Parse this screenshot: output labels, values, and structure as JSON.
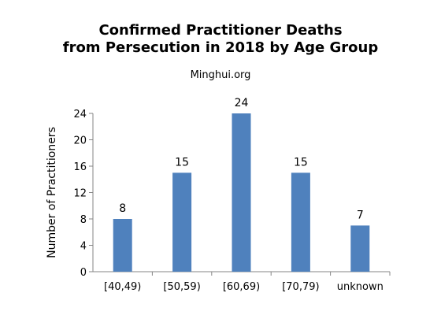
{
  "chart_data": {
    "type": "bar",
    "title_lines": [
      "Confirmed Practitioner Deaths",
      "from Persecution in 2018 by Age Group"
    ],
    "subtitle": "Minghui.org",
    "xlabel": "",
    "ylabel": "Number of Practitioners",
    "categories": [
      "[40,49)",
      "[50,59)",
      "[60,69)",
      "[70,79)",
      "unknown"
    ],
    "values": [
      8,
      15,
      24,
      15,
      7
    ],
    "data_labels": [
      "8",
      "15",
      "24",
      "15",
      "7"
    ],
    "ylim": [
      0,
      24
    ],
    "yticks": [
      "0",
      "4",
      "8",
      "12",
      "16",
      "20",
      "24"
    ],
    "grid": false,
    "bar_color": "#4f81bd"
  }
}
